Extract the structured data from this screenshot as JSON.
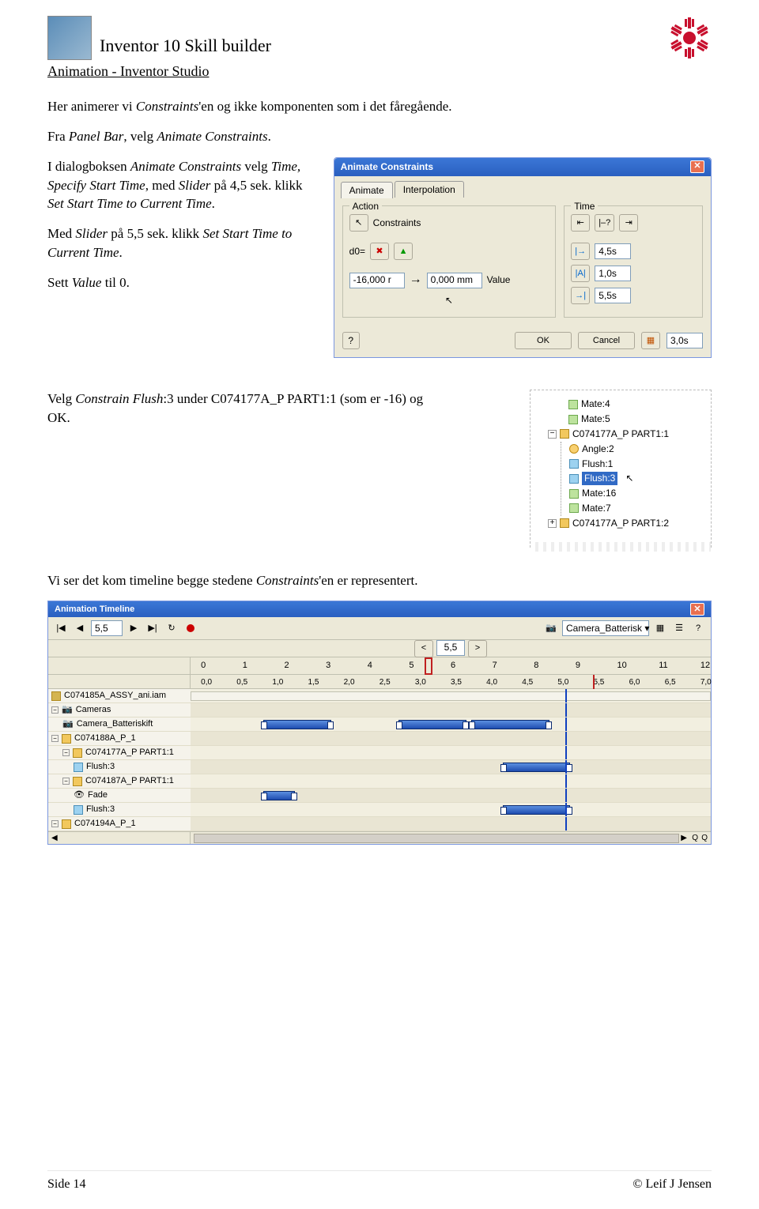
{
  "doc": {
    "title": "Inventor 10  Skill builder",
    "subtitle": "Animation - Inventor Studio"
  },
  "para1": "Her animerer vi ",
  "para1_i": "Constraints",
  "para1_b": "'en og ikke komponenten som i det fåregående.",
  "para2_a": "Fra ",
  "para2_i1": "Panel Bar",
  "para2_b": ", velg ",
  "para2_i2": "Animate Constraints",
  "para2_c": ".",
  "para3_a": "I dialogboksen ",
  "para3_i1": "Animate Constraints",
  "para3_b": " velg ",
  "para3_i2": "Time, Specify Start Time",
  "para3_c": ", med ",
  "para3_i3": "Slider",
  "para3_d": " på 4,5 sek. klikk ",
  "para3_i4": "Set Start Time to Current Time",
  "para3_e": ".",
  "para4_a": "Med ",
  "para4_i1": "Slider",
  "para4_b": " på 5,5 sek. klikk ",
  "para4_i2": "Set Start Time to Current Time",
  "para4_c": ".",
  "para5_a": "Sett ",
  "para5_i1": "Value",
  "para5_b": " til 0.",
  "para6_a": "Velg ",
  "para6_i1": "Constrain Flush",
  "para6_b": ":3 under C074177A_P PART1:1 (som er -16) og OK.",
  "para7_a": "Vi ser det kom timeline begge stedene ",
  "para7_i1": "Constraints",
  "para7_b": "'en er representert.",
  "dialog": {
    "title": "Animate Constraints",
    "tab1": "Animate",
    "tab2": "Interpolation",
    "action_legend": "Action",
    "constraints_label": "Constraints",
    "d0_label": "d0=",
    "val_left": "-16,000 r",
    "val_right": "0,000 mm",
    "value_label": "Value",
    "time_legend": "Time",
    "t1": "4,5s",
    "t2": "1,0s",
    "t3": "5,5s",
    "ok": "OK",
    "cancel": "Cancel",
    "tdur": "3,0s"
  },
  "tree": {
    "items": [
      "Mate:4",
      "Mate:5"
    ],
    "part1": "C074177A_P PART1:1",
    "children": [
      "Angle:2",
      "Flush:1",
      "Flush:3",
      "Mate:16",
      "Mate:7"
    ],
    "part2": "C074177A_P PART1:2"
  },
  "timeline": {
    "title": "Animation Timeline",
    "pos_input": "5,5",
    "camera": "Camera_Batterisk",
    "nav_pos": "5,5",
    "maj_ticks": [
      "0",
      "1",
      "2",
      "3",
      "4",
      "5",
      "6",
      "7",
      "8",
      "9",
      "10",
      "11",
      "12"
    ],
    "min_ticks": [
      "0,0",
      "0,5",
      "1,0",
      "1,5",
      "2,0",
      "2,5",
      "3,0",
      "3,5",
      "4,0",
      "4,5",
      "5,0",
      "5,5",
      "6,0",
      "6,5",
      "7,0"
    ],
    "tracks": [
      {
        "label": "C074185A_ASSY_ani.iam",
        "icon": "assembly",
        "full": true
      },
      {
        "label": "Cameras",
        "icon": "folder",
        "clips": []
      },
      {
        "label": "Camera_Batteriskift",
        "icon": "camera",
        "indent": 1,
        "clips": [
          {
            "l": 14,
            "w": 13
          },
          {
            "l": 40,
            "w": 13
          },
          {
            "l": 54,
            "w": 15
          }
        ]
      },
      {
        "label": "C074188A_P_1",
        "icon": "cube",
        "clips": []
      },
      {
        "label": "C074177A_P PART1:1",
        "icon": "cube",
        "indent": 1,
        "clips": []
      },
      {
        "label": "Flush:3",
        "icon": "flush",
        "indent": 2,
        "clips": [
          {
            "l": 60,
            "w": 13
          }
        ]
      },
      {
        "label": "C074187A_P PART1:1",
        "icon": "cube",
        "indent": 1,
        "clips": []
      },
      {
        "label": "Fade",
        "icon": "fade",
        "indent": 2,
        "clips": [
          {
            "l": 14,
            "w": 6
          }
        ]
      },
      {
        "label": "Flush:3",
        "icon": "flush",
        "indent": 2,
        "clips": [
          {
            "l": 60,
            "w": 13
          }
        ]
      },
      {
        "label": "C074194A_P_1",
        "icon": "cube",
        "clips": []
      }
    ],
    "playhead_pct": 72
  },
  "footer": {
    "left": "Side 14",
    "right": "© Leif J Jensen"
  }
}
